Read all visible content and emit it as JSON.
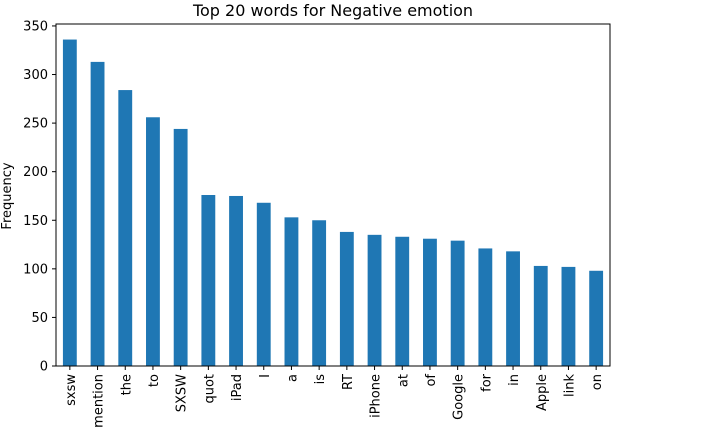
{
  "chart_data": {
    "type": "bar",
    "title": "Top 20 words for Negative emotion",
    "xlabel": "",
    "ylabel": "Frequency",
    "categories": [
      "sxsw",
      "mention",
      "the",
      "to",
      "SXSW",
      "quot",
      "iPad",
      "I",
      "a",
      "is",
      "RT",
      "iPhone",
      "at",
      "of",
      "Google",
      "for",
      "in",
      "Apple",
      "link",
      "on"
    ],
    "values": [
      336,
      313,
      284,
      256,
      244,
      176,
      175,
      168,
      153,
      150,
      138,
      135,
      133,
      131,
      129,
      121,
      118,
      103,
      102,
      98
    ],
    "ylim": [
      0,
      352
    ],
    "yticks": [
      0,
      50,
      100,
      150,
      200,
      250,
      300,
      350
    ],
    "grid": false,
    "bar_color": "#1f77b4"
  }
}
